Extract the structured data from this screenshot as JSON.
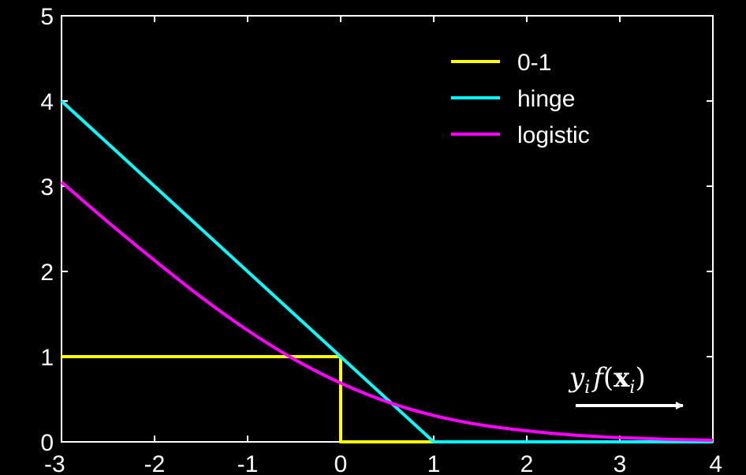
{
  "chart_data": {
    "type": "line",
    "title": "",
    "xlabel": "y_i f(x_i)",
    "xlabel_parts": [
      "y",
      "i",
      "f",
      "(",
      "x",
      "i",
      ")"
    ],
    "ylabel": "",
    "xlim": [
      -3,
      4
    ],
    "ylim": [
      0,
      5
    ],
    "xticks": [
      "-3",
      "-2",
      "-1",
      "0",
      "1",
      "2",
      "3",
      "4"
    ],
    "yticks": [
      "0",
      "1",
      "2",
      "3",
      "4",
      "5"
    ],
    "grid": false,
    "legend_position": "top-right",
    "series": [
      {
        "name": "0-1",
        "color": "#ffff00",
        "x": [
          -3,
          0,
          0,
          4
        ],
        "y": [
          1,
          1,
          0,
          0
        ]
      },
      {
        "name": "hinge",
        "color": "#00ffff",
        "x": [
          -3,
          1,
          4
        ],
        "y": [
          4,
          0,
          0
        ]
      },
      {
        "name": "logistic",
        "color": "#ff00ff",
        "x": [
          -3,
          -2.5,
          -2,
          -1.5,
          -1,
          -0.5,
          0,
          0.5,
          1,
          1.5,
          2,
          2.5,
          3,
          3.5,
          4
        ],
        "y": [
          3.05,
          2.58,
          2.13,
          1.7,
          1.31,
          0.97,
          0.69,
          0.47,
          0.31,
          0.2,
          0.13,
          0.08,
          0.05,
          0.03,
          0.02
        ]
      }
    ]
  }
}
